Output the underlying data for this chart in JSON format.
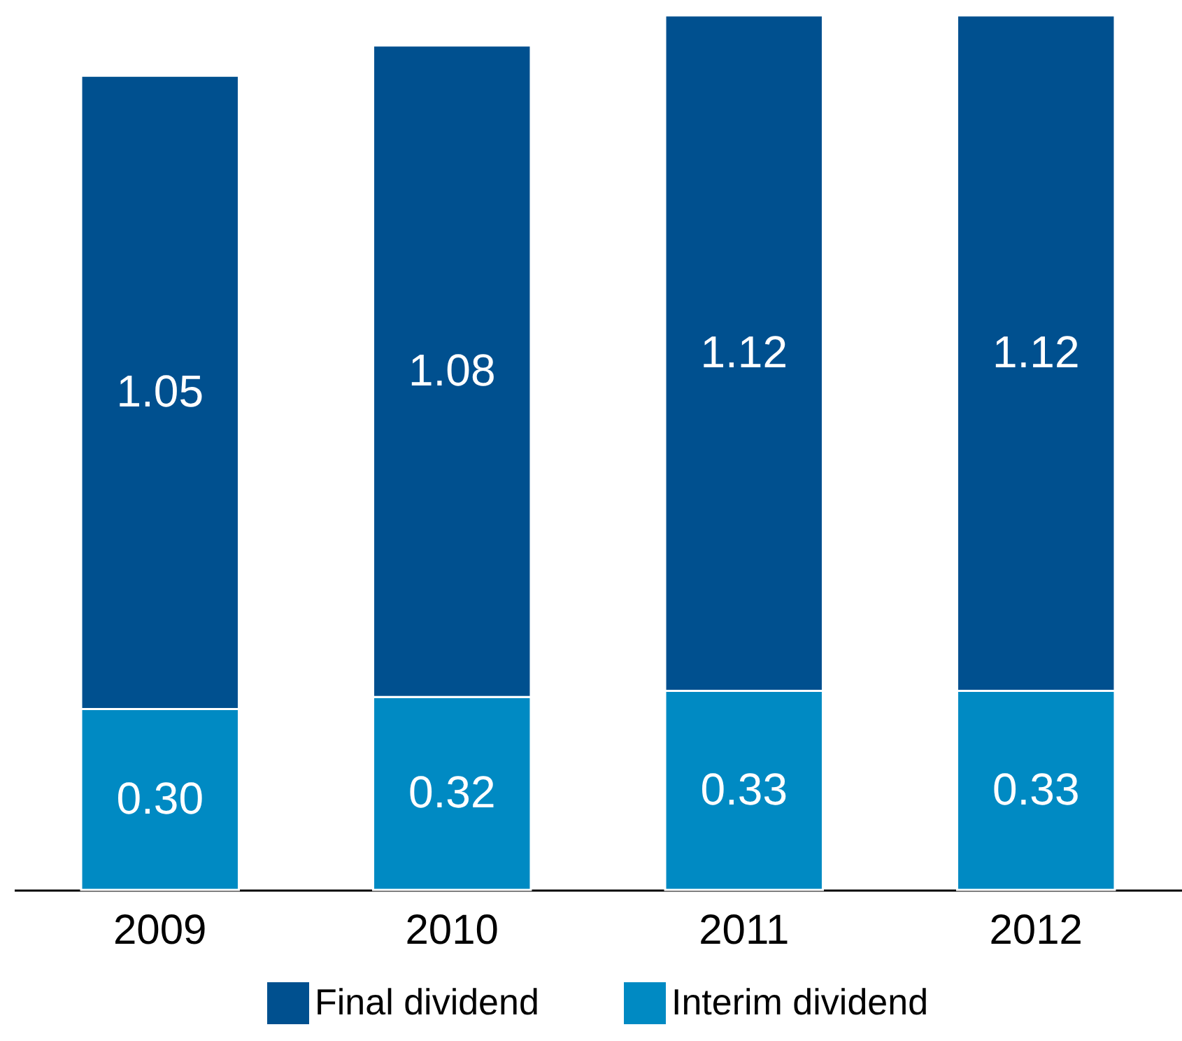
{
  "chart_data": {
    "type": "bar",
    "stacked": true,
    "categories": [
      "2009",
      "2010",
      "2011",
      "2012"
    ],
    "series": [
      {
        "name": "Interim dividend",
        "color": "#008ac3",
        "values": [
          0.3,
          0.32,
          0.33,
          0.33
        ],
        "value_labels": [
          "0.30",
          "0.32",
          "0.33",
          "0.33"
        ]
      },
      {
        "name": "Final dividend",
        "color": "#00508f",
        "values": [
          1.05,
          1.08,
          1.12,
          1.12
        ],
        "value_labels": [
          "1.05",
          "1.08",
          "1.12",
          "1.12"
        ]
      }
    ],
    "legend": "bottom",
    "grid": false
  }
}
